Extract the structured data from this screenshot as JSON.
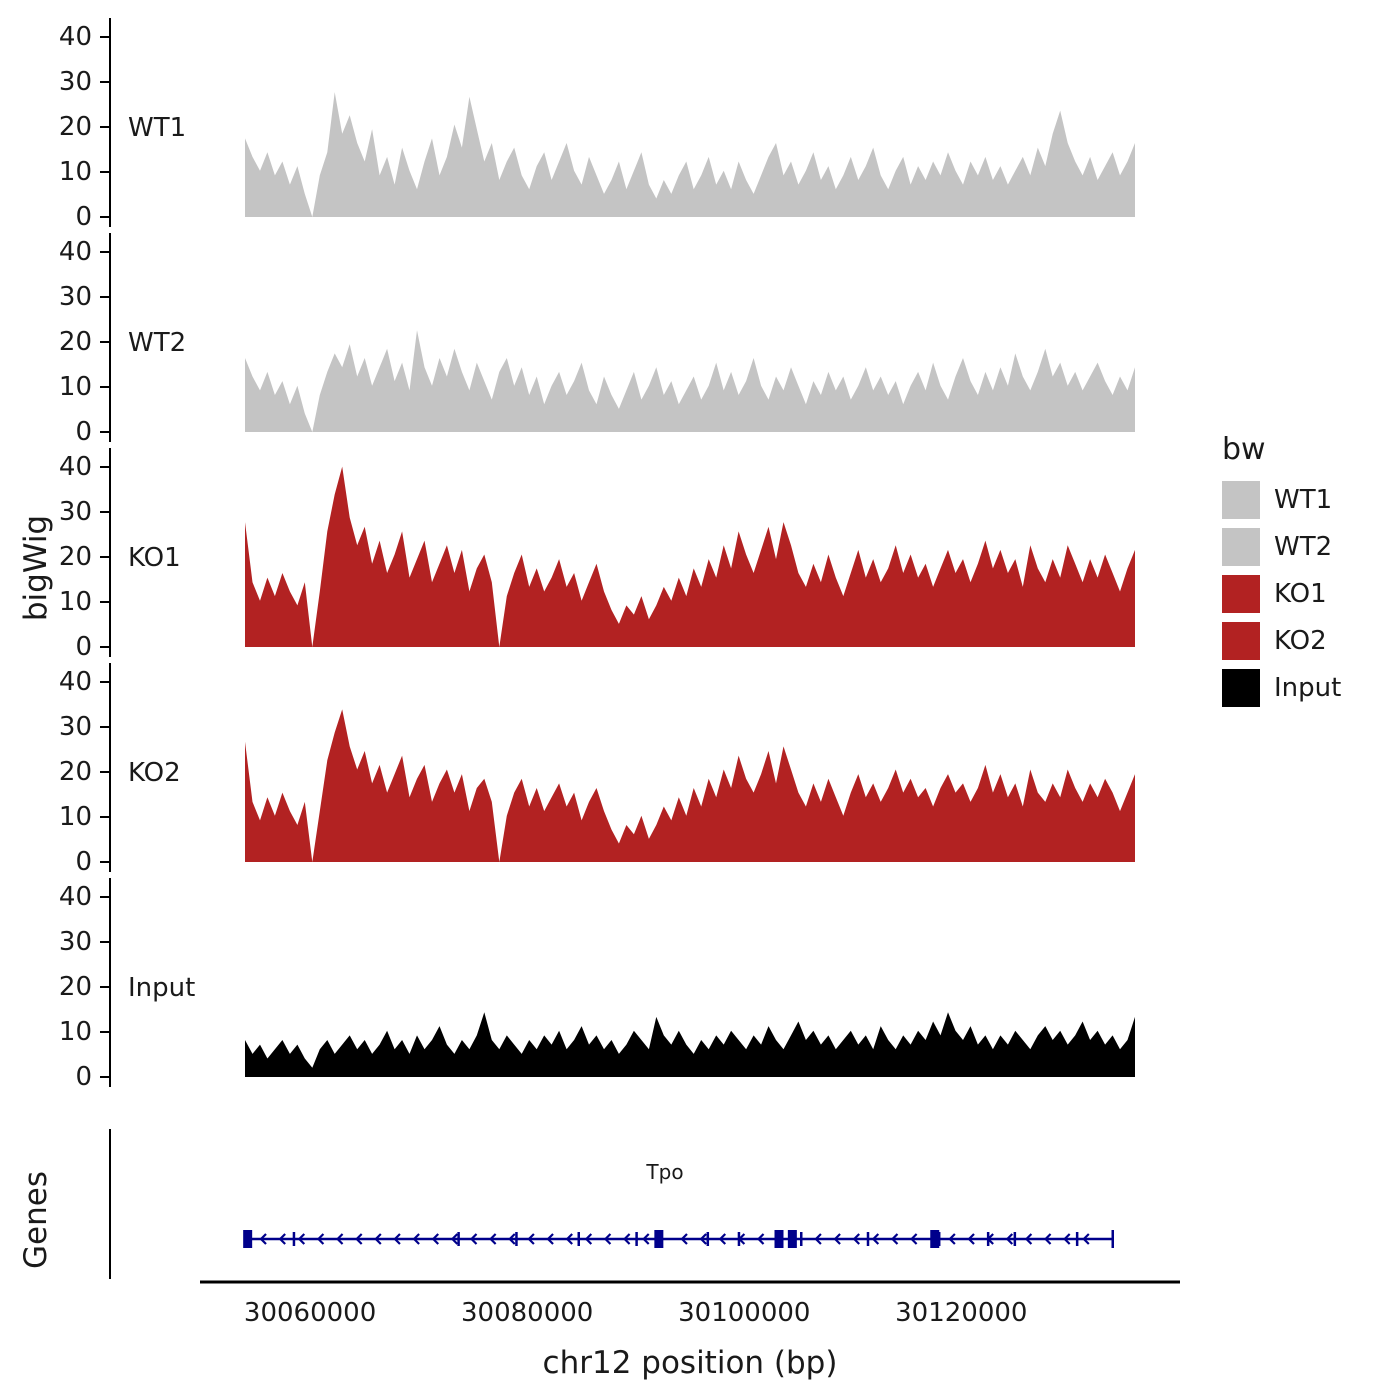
{
  "figure": {
    "y_axis_title": "bigWig",
    "genes_axis_title": "Genes",
    "x_axis_title": "chr12 position (bp)"
  },
  "legend": {
    "title": "bw",
    "items": [
      {
        "label": "WT1",
        "color": "#c4c4c4"
      },
      {
        "label": "WT2",
        "color": "#c4c4c4"
      },
      {
        "label": "KO1",
        "color": "#b22222"
      },
      {
        "label": "KO2",
        "color": "#b22222"
      },
      {
        "label": "Input",
        "color": "#000000"
      }
    ]
  },
  "chart_data": {
    "type": "area",
    "title": "",
    "xlabel": "chr12 position (bp)",
    "ylabel": "bigWig",
    "xlim": [
      30054000,
      30136000
    ],
    "ylim": [
      0,
      40
    ],
    "grid": false,
    "legend_position": "right",
    "y_ticks": [
      0,
      10,
      20,
      30,
      40
    ],
    "x_ticks": [
      30060000,
      30080000,
      30100000,
      30120000
    ],
    "series": [
      {
        "name": "WT1",
        "color": "#c4c4c4",
        "values": [
          17,
          13,
          10,
          14,
          9,
          12,
          7,
          11,
          5,
          0,
          9,
          14,
          27,
          18,
          22,
          16,
          12,
          19,
          9,
          13,
          7,
          15,
          10,
          6,
          12,
          17,
          9,
          13,
          20,
          15,
          26,
          19,
          12,
          16,
          8,
          12,
          15,
          9,
          6,
          11,
          14,
          8,
          12,
          16,
          10,
          7,
          13,
          9,
          5,
          8,
          12,
          6,
          10,
          14,
          7,
          4,
          8,
          5,
          9,
          12,
          6,
          9,
          13,
          7,
          10,
          6,
          12,
          8,
          5,
          9,
          13,
          16,
          9,
          12,
          7,
          10,
          14,
          8,
          11,
          6,
          9,
          13,
          8,
          11,
          15,
          9,
          6,
          10,
          13,
          7,
          11,
          8,
          12,
          9,
          14,
          10,
          7,
          12,
          9,
          13,
          8,
          11,
          7,
          10,
          13,
          9,
          15,
          11,
          18,
          23,
          16,
          12,
          9,
          13,
          8,
          11,
          14,
          9,
          12,
          16
        ]
      },
      {
        "name": "WT2",
        "color": "#c4c4c4",
        "values": [
          16,
          12,
          9,
          13,
          8,
          11,
          6,
          10,
          4,
          0,
          8,
          13,
          17,
          14,
          19,
          12,
          16,
          10,
          14,
          18,
          11,
          15,
          9,
          22,
          14,
          10,
          16,
          12,
          18,
          13,
          9,
          15,
          11,
          7,
          13,
          16,
          10,
          14,
          8,
          12,
          6,
          10,
          13,
          8,
          11,
          15,
          9,
          6,
          12,
          8,
          5,
          9,
          13,
          7,
          10,
          14,
          8,
          11,
          6,
          9,
          12,
          7,
          10,
          15,
          9,
          13,
          8,
          11,
          16,
          10,
          7,
          12,
          9,
          14,
          10,
          6,
          11,
          8,
          13,
          9,
          12,
          7,
          10,
          14,
          9,
          12,
          8,
          11,
          6,
          10,
          13,
          9,
          15,
          10,
          7,
          12,
          16,
          11,
          8,
          13,
          9,
          14,
          10,
          17,
          12,
          9,
          13,
          18,
          12,
          15,
          10,
          13,
          9,
          12,
          15,
          11,
          8,
          12,
          9,
          14
        ]
      },
      {
        "name": "KO1",
        "color": "#b22222",
        "values": [
          27,
          14,
          10,
          15,
          11,
          16,
          12,
          9,
          14,
          0,
          12,
          25,
          33,
          39,
          28,
          22,
          26,
          18,
          23,
          16,
          20,
          25,
          15,
          19,
          23,
          14,
          18,
          22,
          16,
          21,
          12,
          17,
          20,
          14,
          0,
          11,
          16,
          20,
          13,
          17,
          12,
          15,
          19,
          13,
          16,
          10,
          14,
          18,
          12,
          8,
          5,
          9,
          7,
          11,
          6,
          9,
          13,
          10,
          15,
          11,
          17,
          13,
          19,
          15,
          22,
          17,
          25,
          20,
          16,
          21,
          26,
          19,
          27,
          22,
          16,
          13,
          18,
          14,
          20,
          15,
          11,
          16,
          21,
          15,
          19,
          14,
          17,
          22,
          16,
          20,
          15,
          18,
          13,
          17,
          21,
          16,
          19,
          14,
          18,
          23,
          17,
          21,
          16,
          19,
          13,
          22,
          17,
          14,
          19,
          15,
          22,
          18,
          14,
          19,
          15,
          20,
          16,
          12,
          17,
          21
        ]
      },
      {
        "name": "KO2",
        "color": "#b22222",
        "values": [
          26,
          13,
          9,
          14,
          10,
          15,
          11,
          8,
          13,
          0,
          11,
          22,
          28,
          33,
          25,
          20,
          24,
          17,
          21,
          15,
          19,
          23,
          14,
          18,
          21,
          13,
          17,
          20,
          15,
          19,
          11,
          16,
          18,
          13,
          0,
          10,
          15,
          18,
          12,
          16,
          11,
          14,
          17,
          12,
          15,
          9,
          13,
          16,
          11,
          7,
          4,
          8,
          6,
          10,
          5,
          8,
          12,
          9,
          14,
          10,
          16,
          12,
          18,
          14,
          20,
          16,
          23,
          18,
          15,
          19,
          24,
          17,
          25,
          20,
          15,
          12,
          17,
          13,
          18,
          14,
          10,
          15,
          19,
          14,
          17,
          13,
          16,
          20,
          15,
          18,
          14,
          16,
          12,
          16,
          19,
          15,
          17,
          13,
          16,
          21,
          15,
          19,
          14,
          17,
          12,
          20,
          15,
          13,
          17,
          14,
          20,
          16,
          13,
          17,
          14,
          18,
          15,
          11,
          15,
          19
        ]
      },
      {
        "name": "Input",
        "color": "#000000",
        "values": [
          8,
          5,
          7,
          4,
          6,
          8,
          5,
          7,
          4,
          2,
          6,
          8,
          5,
          7,
          9,
          6,
          8,
          5,
          7,
          10,
          6,
          8,
          5,
          9,
          6,
          8,
          11,
          7,
          5,
          8,
          6,
          9,
          14,
          8,
          6,
          9,
          7,
          5,
          8,
          6,
          9,
          7,
          10,
          6,
          8,
          11,
          7,
          9,
          6,
          8,
          5,
          7,
          10,
          8,
          6,
          13,
          9,
          7,
          10,
          7,
          5,
          8,
          6,
          9,
          7,
          10,
          8,
          6,
          9,
          7,
          11,
          8,
          6,
          9,
          12,
          8,
          10,
          7,
          9,
          6,
          8,
          10,
          7,
          9,
          6,
          11,
          8,
          6,
          9,
          7,
          10,
          8,
          12,
          9,
          14,
          10,
          8,
          11,
          7,
          9,
          6,
          9,
          7,
          10,
          8,
          6,
          9,
          11,
          8,
          10,
          7,
          9,
          12,
          8,
          10,
          7,
          9,
          6,
          8,
          13
        ]
      }
    ],
    "gene_track": {
      "label": "Tpo",
      "color": "#00008b",
      "strand": "-",
      "start_frac": 0.0,
      "end_frac": 0.975,
      "exon_fracs": [
        0.055,
        0.24,
        0.305,
        0.375,
        0.44,
        0.52,
        0.555,
        0.625,
        0.7,
        0.78,
        0.835,
        0.865,
        0.935
      ],
      "cds_fracs": [
        0.003,
        0.465,
        0.6,
        0.615,
        0.775
      ]
    }
  }
}
